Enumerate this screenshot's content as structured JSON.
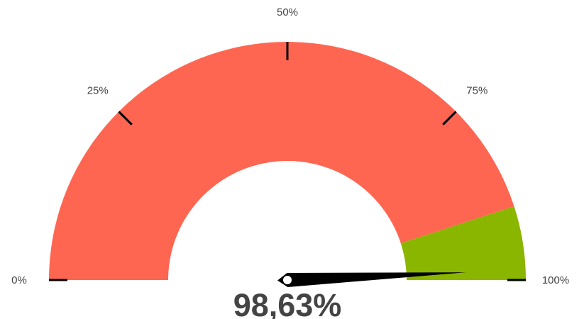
{
  "chart_data": {
    "type": "gauge",
    "min": 0,
    "max": 100,
    "value": 98.63,
    "value_label": "98,63%",
    "ticks": [
      {
        "value": 0,
        "label": "0%"
      },
      {
        "value": 25,
        "label": "25%"
      },
      {
        "value": 50,
        "label": "50%"
      },
      {
        "value": 75,
        "label": "75%"
      },
      {
        "value": 100,
        "label": "100%"
      }
    ],
    "bands": [
      {
        "from": 0,
        "to": 90,
        "color": "#ff6651"
      },
      {
        "from": 90,
        "to": 100,
        "color": "#8ab600"
      }
    ],
    "needle_color": "#000000",
    "tick_color": "#000000"
  }
}
